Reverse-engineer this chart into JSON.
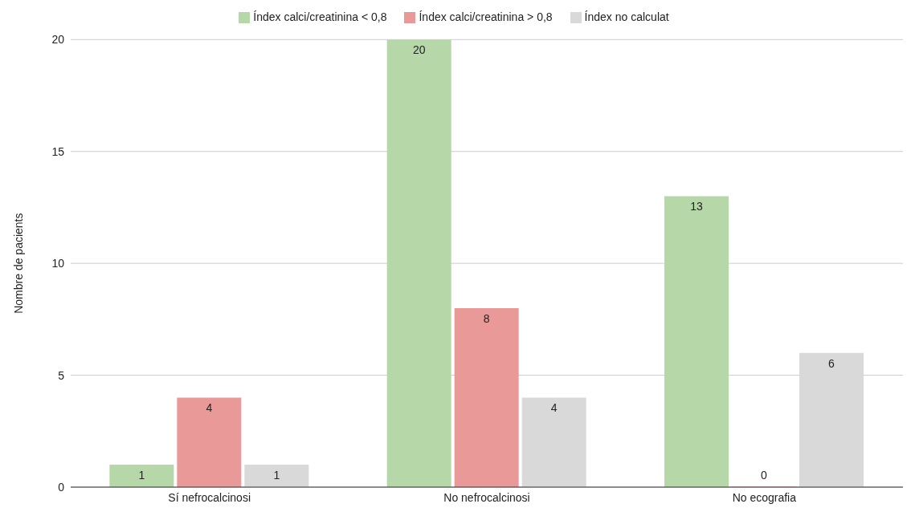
{
  "chart_data": {
    "type": "bar",
    "ylabel": "Nombre de pacients",
    "categories": [
      "Sí nefrocalcinosi",
      "No nefrocalcinosi",
      "No ecografia"
    ],
    "series": [
      {
        "name": "Índex calci/creatinina < 0,8",
        "color": "#b6d7a8",
        "values": [
          1,
          20,
          13
        ]
      },
      {
        "name": "Índex calci/creatinina > 0,8",
        "color": "#ea9999",
        "values": [
          4,
          8,
          0
        ]
      },
      {
        "name": "Índex no calculat",
        "color": "#d9d9d9",
        "values": [
          1,
          4,
          6
        ]
      }
    ],
    "ylim": [
      0,
      20
    ],
    "yticks": [
      0,
      5,
      10,
      15,
      20
    ],
    "grid": "y",
    "legend": "top",
    "data_labels": true
  }
}
